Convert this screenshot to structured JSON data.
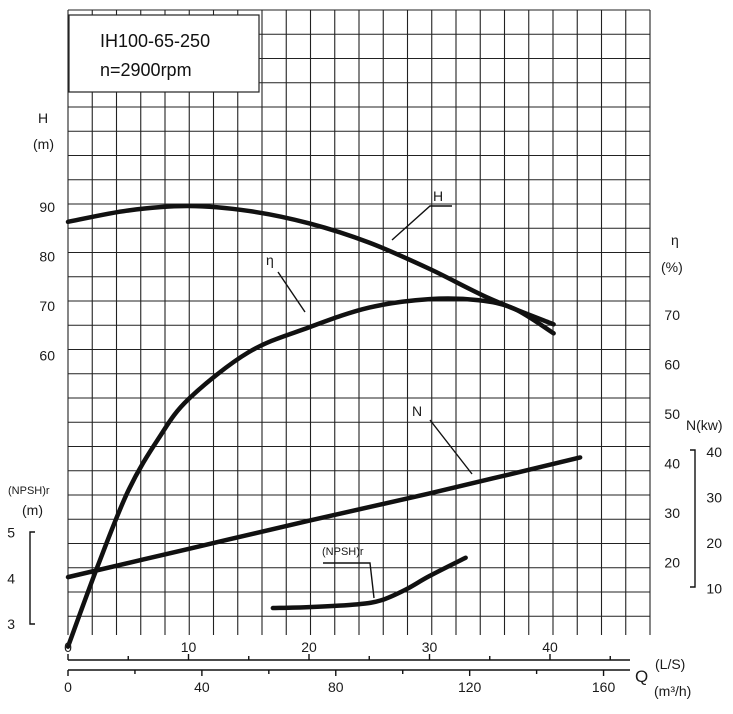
{
  "title": {
    "model": "IH100-65-250",
    "speed": "n=2900rpm"
  },
  "labels": {
    "h_axis_letter": "H",
    "h_axis_unit": "(m)",
    "eff_axis_letter": "η",
    "eff_axis_unit": "(%)",
    "power_axis": "N(kw)",
    "npsh_axis_letter": "(NPSH)r",
    "npsh_axis_unit": "(m)",
    "flow_unit_ls": "(L/S)",
    "flow_letter": "Q",
    "flow_unit_m3h": "(m³/h)",
    "curve_h": "H",
    "curve_eff": "η",
    "curve_power": "N",
    "curve_npsh": "(NPSH)r"
  },
  "chart_data": {
    "type": "line",
    "x_ls_ticks": [
      "0",
      "10",
      "20",
      "30",
      "40"
    ],
    "x_m3h_ticks": [
      "0",
      "40",
      "80",
      "120",
      "160"
    ],
    "head_ticks": [
      "90",
      "80",
      "70",
      "60"
    ],
    "eff_ticks": [
      "70",
      "60",
      "50",
      "40",
      "30",
      "20"
    ],
    "power_ticks": [
      "40",
      "30",
      "20",
      "10"
    ],
    "npsh_ticks": [
      "5",
      "4",
      "3"
    ],
    "xlim_ls": [
      0,
      48
    ],
    "series": [
      {
        "name": "H",
        "unit": "m",
        "x_ls": [
          0,
          5,
          10,
          15,
          20,
          25,
          30,
          35,
          40.3
        ],
        "y": [
          87,
          89.3,
          90.2,
          89.2,
          86.7,
          82.8,
          77.5,
          71.5,
          66.3
        ]
      },
      {
        "name": "η",
        "unit": "%",
        "x_ls": [
          0,
          2.5,
          5,
          7.5,
          10,
          15,
          20,
          25,
          30,
          34,
          37,
          40.3
        ],
        "y": [
          3,
          19.5,
          34.5,
          45,
          53,
          62.5,
          67.5,
          71.5,
          73.2,
          73,
          71.3,
          66.3
        ]
      },
      {
        "name": "N",
        "unit": "kW",
        "x_ls": [
          0,
          10,
          20,
          30,
          42.5
        ],
        "y": [
          12.5,
          18.7,
          24.9,
          30.9,
          38.8
        ]
      },
      {
        "name": "(NPSH)r",
        "unit": "m",
        "x_ls": [
          17,
          20,
          24,
          26,
          28,
          30,
          33
        ],
        "y": [
          3.35,
          3.37,
          3.43,
          3.52,
          3.75,
          4.05,
          4.45
        ]
      }
    ]
  }
}
